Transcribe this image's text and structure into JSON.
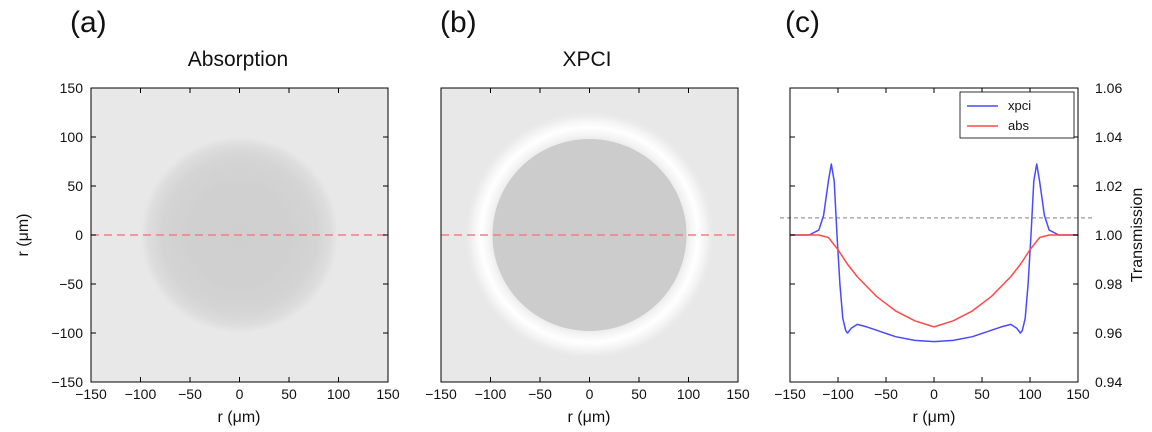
{
  "figure": {
    "panels": [
      {
        "id": "a",
        "label": "(a)",
        "title": "Absorption"
      },
      {
        "id": "b",
        "label": "(b)",
        "title": "XPCI"
      },
      {
        "id": "c",
        "label": "(c)",
        "title": ""
      }
    ]
  },
  "chart_data": [
    {
      "type": "heatmap",
      "title": "Absorption",
      "panel_label": "(a)",
      "xlabel": "r (μm)",
      "ylabel": "r (μm)",
      "xlim": [
        -150,
        150
      ],
      "ylim": [
        -150,
        150
      ],
      "x_ticks": [
        -150,
        -100,
        -50,
        0,
        50,
        100,
        150
      ],
      "y_ticks": [
        -150,
        -100,
        -50,
        0,
        50,
        100,
        150
      ],
      "object": {
        "shape": "sphere",
        "center": [
          0,
          0
        ],
        "radius": 100,
        "edge": "soft absorption profile"
      },
      "colors": {
        "background": "#e8e8e8",
        "object_center": "#cfcfcf"
      },
      "line_profile": {
        "y": 0,
        "color": "#f08080",
        "style": "dashed"
      }
    },
    {
      "type": "heatmap",
      "title": "XPCI",
      "panel_label": "(b)",
      "xlabel": "r (μm)",
      "ylabel": "",
      "xlim": [
        -150,
        150
      ],
      "ylim": [
        -150,
        150
      ],
      "x_ticks": [
        -150,
        -100,
        -50,
        0,
        50,
        100,
        150
      ],
      "y_ticks": [],
      "object": {
        "shape": "sphere",
        "center": [
          0,
          0
        ],
        "radius": 100,
        "edge": "bright fringe ring"
      },
      "colors": {
        "background": "#e8e8e8",
        "object": "#cccccc",
        "fringe": "#ffffff"
      },
      "line_profile": {
        "y": 0,
        "color": "#f08080",
        "style": "dashed"
      }
    },
    {
      "type": "line",
      "panel_label": "(c)",
      "xlabel": "r (μm)",
      "ylabel": "Transmission",
      "xlim": [
        -150,
        150
      ],
      "ylim": [
        0.94,
        1.06
      ],
      "x_ticks": [
        -150,
        -100,
        -50,
        0,
        50,
        100,
        150
      ],
      "y_ticks": [
        "0.94",
        "0.96",
        "0.98",
        "1.00",
        "1.02",
        "1.04",
        "1.06"
      ],
      "y_axis_side": "right",
      "reference_line": {
        "y": 1.007,
        "color": "#999999",
        "style": "dashed"
      },
      "legend": {
        "position": "top-right"
      },
      "series": [
        {
          "name": "xpci",
          "color": "#4a4aff",
          "points": [
            [
              -150,
              1.0
            ],
            [
              -130,
              1.0
            ],
            [
              -120,
              1.002
            ],
            [
              -115,
              1.008
            ],
            [
              -110,
              1.022
            ],
            [
              -107,
              1.029
            ],
            [
              -104,
              1.022
            ],
            [
              -101,
              1.0
            ],
            [
              -98,
              0.98
            ],
            [
              -95,
              0.966
            ],
            [
              -92,
              0.961
            ],
            [
              -90,
              0.96
            ],
            [
              -86,
              0.962
            ],
            [
              -80,
              0.9635
            ],
            [
              -70,
              0.9625
            ],
            [
              -55,
              0.9605
            ],
            [
              -40,
              0.9585
            ],
            [
              -20,
              0.957
            ],
            [
              0,
              0.9565
            ],
            [
              20,
              0.957
            ],
            [
              40,
              0.9585
            ],
            [
              55,
              0.9605
            ],
            [
              70,
              0.9625
            ],
            [
              80,
              0.9635
            ],
            [
              86,
              0.962
            ],
            [
              90,
              0.96
            ],
            [
              92,
              0.961
            ],
            [
              95,
              0.966
            ],
            [
              98,
              0.98
            ],
            [
              101,
              1.0
            ],
            [
              104,
              1.022
            ],
            [
              107,
              1.029
            ],
            [
              110,
              1.022
            ],
            [
              115,
              1.008
            ],
            [
              120,
              1.002
            ],
            [
              130,
              1.0
            ],
            [
              150,
              1.0
            ]
          ]
        },
        {
          "name": "abs",
          "color": "#ff4a4a",
          "points": [
            [
              -150,
              1.0
            ],
            [
              -120,
              1.0
            ],
            [
              -110,
              0.999
            ],
            [
              -100,
              0.994
            ],
            [
              -90,
              0.988
            ],
            [
              -80,
              0.983
            ],
            [
              -60,
              0.975
            ],
            [
              -40,
              0.969
            ],
            [
              -20,
              0.965
            ],
            [
              0,
              0.9625
            ],
            [
              20,
              0.965
            ],
            [
              40,
              0.969
            ],
            [
              60,
              0.975
            ],
            [
              80,
              0.983
            ],
            [
              90,
              0.988
            ],
            [
              100,
              0.994
            ],
            [
              110,
              0.999
            ],
            [
              120,
              1.0
            ],
            [
              150,
              1.0
            ]
          ]
        }
      ]
    }
  ]
}
